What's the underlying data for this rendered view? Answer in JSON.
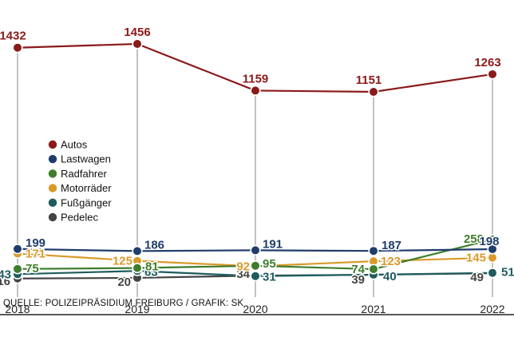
{
  "chart_data": {
    "type": "line",
    "x": [
      "2018",
      "2019",
      "2020",
      "2021",
      "2022"
    ],
    "series": [
      {
        "name": "Autos",
        "color": "#8b1a1a",
        "values": [
          1432,
          1456,
          1159,
          1151,
          1263
        ]
      },
      {
        "name": "Lastwagen",
        "color": "#1f3d6b",
        "values": [
          199,
          186,
          191,
          187,
          198
        ]
      },
      {
        "name": "Radfahrer",
        "color": "#3e7d2b",
        "values": [
          75,
          81,
          95,
          74,
          258
        ]
      },
      {
        "name": "Motorräder",
        "color": "#d99a2b",
        "values": [
          171,
          125,
          92,
          123,
          145
        ]
      },
      {
        "name": "Fußgänger",
        "color": "#1e5c5e",
        "values": [
          43,
          63,
          31,
          40,
          51
        ]
      },
      {
        "name": "Pedelec",
        "color": "#444444",
        "values": [
          16,
          20,
          34,
          39,
          49
        ]
      }
    ]
  },
  "source": "QUELLE: POLIZEIPRÄSIDIUM FREIBURG / GRAFIK: SK"
}
